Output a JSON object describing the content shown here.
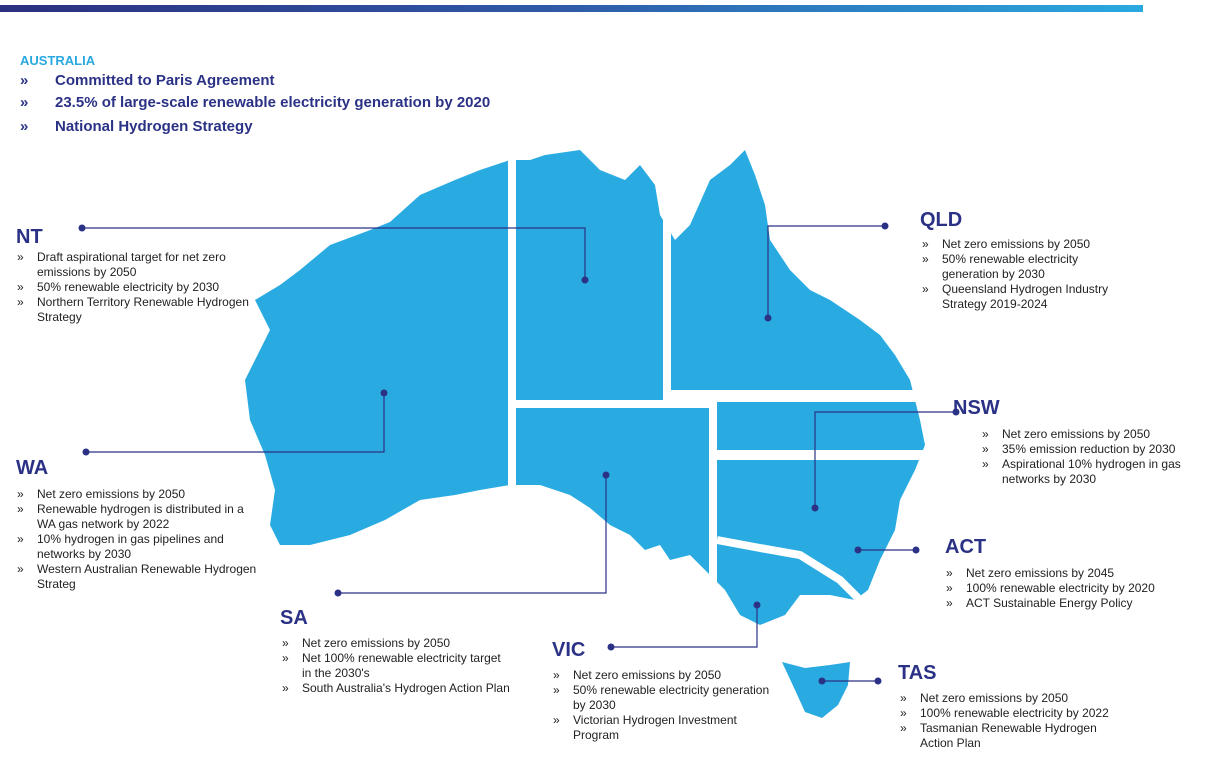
{
  "header": {
    "title": "AUSTRALIA",
    "bullets": [
      "Committed to Paris Agreement",
      "23.5% of large-scale renewable electricity generation by 2020",
      "National Hydrogen Strategy"
    ]
  },
  "regions": [
    {
      "title": "NT",
      "items": [
        "Draft aspirational target for net zero emissions by 2050",
        "50% renewable electricity by 2030",
        "Northern Territory Renewable Hydrogen Strategy"
      ]
    },
    {
      "title": "QLD",
      "items": [
        "Net zero emissions by 2050",
        "50% renewable electricity generation by 2030",
        "Queensland Hydrogen Industry Strategy 2019-2024"
      ]
    },
    {
      "title": "NSW",
      "items": [
        "Net zero emissions by 2050",
        "35% emission reduction by 2030",
        "Aspirational 10% hydrogen in gas networks by 2030"
      ]
    },
    {
      "title": "WA",
      "items": [
        "Net zero emissions by 2050",
        "Renewable hydrogen is distributed in a WA gas network by 2022",
        "10% hydrogen in gas pipelines and networks by 2030",
        "Western Australian Renewable Hydrogen Strateg"
      ]
    },
    {
      "title": "ACT",
      "items": [
        "Net zero emissions by 2045",
        "100% renewable electricity by 2020",
        "ACT Sustainable Energy Policy"
      ]
    },
    {
      "title": "SA",
      "items": [
        "Net zero emissions by 2050",
        "Net 100% renewable electricity target in the 2030's",
        "South Australia's Hydrogen Action Plan"
      ]
    },
    {
      "title": "VIC",
      "items": [
        "Net zero emissions by 2050",
        "50% renewable electricity generation by 2030",
        "Victorian Hydrogen Investment Program"
      ]
    },
    {
      "title": "TAS",
      "items": [
        "Net zero emissions by 2050",
        "100% renewable electricity by 2022",
        "Tasmanian Renewable Hydrogen Action Plan"
      ]
    }
  ]
}
